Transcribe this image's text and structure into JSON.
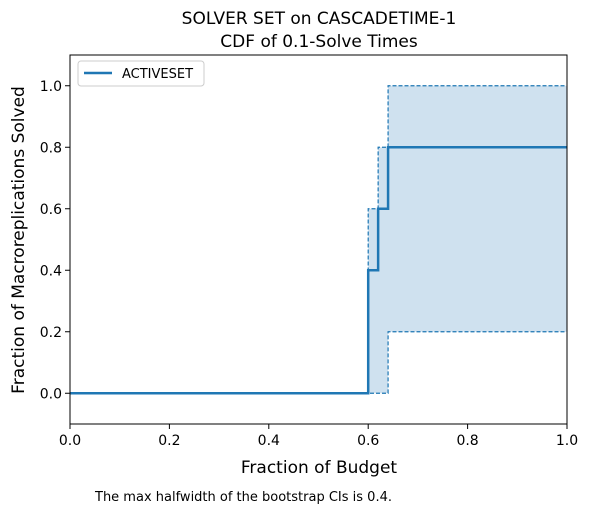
{
  "chart_data": {
    "type": "line",
    "title": "SOLVER SET on CASCADETIME-1",
    "subtitle": "CDF of 0.1-Solve Times",
    "xlabel": "Fraction of Budget",
    "ylabel": "Fraction of Macroreplications Solved",
    "xlim": [
      0.0,
      1.0
    ],
    "ylim": [
      -0.1,
      1.1
    ],
    "xticks": [
      0.0,
      0.2,
      0.4,
      0.6,
      0.8,
      1.0
    ],
    "xtick_labels": [
      "0.0",
      "0.2",
      "0.4",
      "0.6",
      "0.8",
      "1.0"
    ],
    "yticks": [
      0.0,
      0.2,
      0.4,
      0.6,
      0.8,
      1.0
    ],
    "ytick_labels": [
      "0.0",
      "0.2",
      "0.4",
      "0.6",
      "0.8",
      "1.0"
    ],
    "grid": false,
    "legend_position": "top-left",
    "series": [
      {
        "name": "ACTIVESET",
        "color": "#1f77b4",
        "step": true,
        "x": [
          0.0,
          0.6,
          0.6,
          0.62,
          0.62,
          0.64,
          0.64,
          1.0
        ],
        "y": [
          0.0,
          0.0,
          0.4,
          0.4,
          0.6,
          0.6,
          0.8,
          0.8
        ]
      }
    ],
    "confidence_band": {
      "series": "ACTIVESET",
      "color": "#1f77b4",
      "fill_color": "#cfe1ef",
      "x": [
        0.0,
        0.6,
        0.6,
        0.62,
        0.62,
        0.64,
        0.64,
        1.0
      ],
      "upper": [
        0.0,
        0.0,
        0.6,
        0.6,
        0.8,
        0.8,
        1.0,
        1.0
      ],
      "lower": [
        0.0,
        0.0,
        0.0,
        0.0,
        0.0,
        0.0,
        0.2,
        0.2
      ]
    },
    "footnote": "The max halfwidth of the bootstrap CIs is 0.4."
  }
}
